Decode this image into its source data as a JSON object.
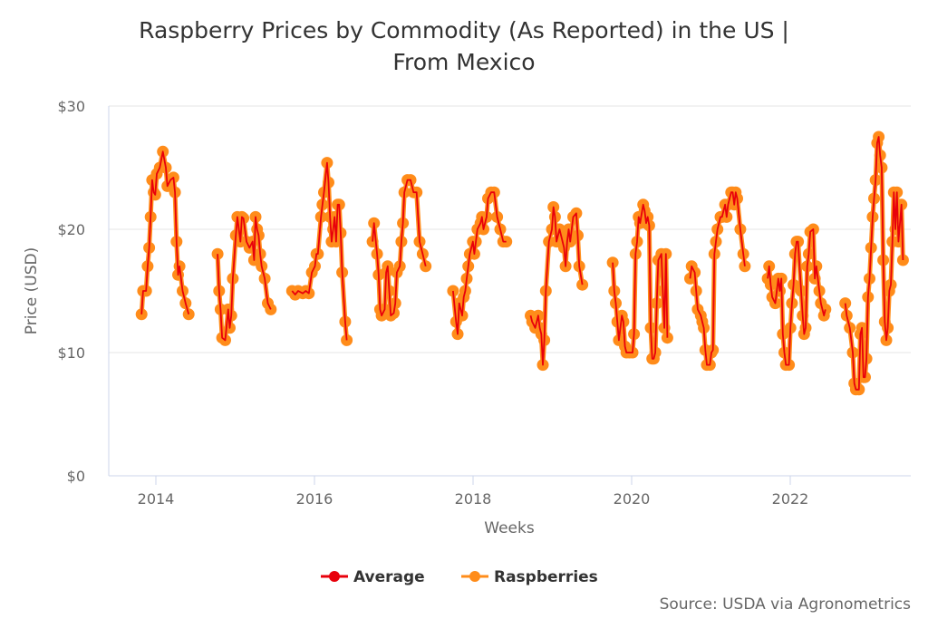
{
  "chart_data": {
    "type": "line",
    "title": "Raspberry Prices by Commodity (As Reported) in the US |",
    "subtitle": "From Mexico",
    "xlabel": "Weeks",
    "ylabel": "Price (USD)",
    "ylim": [
      0,
      30
    ],
    "xlim": [
      "2013-06-01",
      "2023-08-01"
    ],
    "yticks": [
      "$0",
      "$10",
      "$20",
      "$30"
    ],
    "ytick_values": [
      0,
      10,
      20,
      30
    ],
    "xticks": [
      "2014",
      "2016",
      "2018",
      "2020",
      "2022"
    ],
    "grid": "horizontal",
    "legend_position": "bottom",
    "source": "Source: USDA via Agronometrics",
    "series": [
      {
        "name": "Average",
        "color": "#e8000b"
      },
      {
        "name": "Raspberries",
        "color": "#ff8c1a"
      }
    ],
    "segments": [
      [
        [
          "2013-10-27",
          13.1
        ],
        [
          "2013-11-03",
          15
        ],
        [
          "2013-11-17",
          15
        ],
        [
          "2013-11-24",
          17
        ],
        [
          "2013-12-01",
          18.5
        ],
        [
          "2013-12-08",
          21
        ],
        [
          "2013-12-15",
          24
        ],
        [
          "2013-12-22",
          23
        ],
        [
          "2013-12-29",
          22.8
        ],
        [
          "2014-01-05",
          24.5
        ],
        [
          "2014-01-19",
          25
        ],
        [
          "2014-02-02",
          26.3
        ],
        [
          "2014-02-16",
          25
        ],
        [
          "2014-02-23",
          23.5
        ],
        [
          "2014-03-09",
          24
        ],
        [
          "2014-03-23",
          24.2
        ],
        [
          "2014-03-30",
          23
        ],
        [
          "2014-04-06",
          19
        ],
        [
          "2014-04-13",
          16.3
        ],
        [
          "2014-04-20",
          17
        ],
        [
          "2014-05-04",
          15
        ],
        [
          "2014-05-18",
          14
        ],
        [
          "2014-06-01",
          13.1
        ]
      ],
      [
        [
          "2014-10-12",
          18
        ],
        [
          "2014-10-19",
          15
        ],
        [
          "2014-10-26",
          13.5
        ],
        [
          "2014-11-02",
          11.2
        ],
        [
          "2014-11-16",
          11
        ],
        [
          "2014-11-30",
          13.5
        ],
        [
          "2014-12-07",
          12
        ],
        [
          "2014-12-14",
          13
        ],
        [
          "2014-12-21",
          16
        ],
        [
          "2015-01-04",
          19.5
        ],
        [
          "2015-01-11",
          21
        ],
        [
          "2015-01-25",
          19
        ],
        [
          "2015-02-01",
          21
        ],
        [
          "2015-02-08",
          20.9
        ],
        [
          "2015-02-22",
          19
        ],
        [
          "2015-03-08",
          18.5
        ],
        [
          "2015-03-22",
          19
        ],
        [
          "2015-03-29",
          17.5
        ],
        [
          "2015-04-05",
          21
        ],
        [
          "2015-04-12",
          20
        ],
        [
          "2015-04-19",
          19.5
        ],
        [
          "2015-04-26",
          18
        ],
        [
          "2015-05-03",
          17
        ],
        [
          "2015-05-17",
          16
        ],
        [
          "2015-05-31",
          14
        ],
        [
          "2015-06-14",
          13.5
        ]
      ],
      [
        [
          "2015-09-20",
          15
        ],
        [
          "2015-10-04",
          14.7
        ],
        [
          "2015-10-18",
          15
        ],
        [
          "2015-11-08",
          14.8
        ],
        [
          "2015-11-22",
          15
        ],
        [
          "2015-12-06",
          14.8
        ],
        [
          "2015-12-20",
          16.5
        ],
        [
          "2016-01-03",
          17
        ],
        [
          "2016-01-10",
          18
        ],
        [
          "2016-01-17",
          18
        ],
        [
          "2016-01-31",
          21
        ],
        [
          "2016-02-07",
          22
        ],
        [
          "2016-02-14",
          23
        ],
        [
          "2016-02-28",
          25.4
        ],
        [
          "2016-03-06",
          23.8
        ],
        [
          "2016-03-13",
          21
        ],
        [
          "2016-03-20",
          19
        ],
        [
          "2016-03-27",
          20
        ],
        [
          "2016-04-03",
          21
        ],
        [
          "2016-04-10",
          19
        ],
        [
          "2016-04-17",
          22
        ],
        [
          "2016-04-24",
          22
        ],
        [
          "2016-05-01",
          19.7
        ],
        [
          "2016-05-08",
          16.5
        ],
        [
          "2016-05-22",
          12.5
        ],
        [
          "2016-05-29",
          11
        ]
      ],
      [
        [
          "2016-09-25",
          19
        ],
        [
          "2016-10-02",
          20.5
        ],
        [
          "2016-10-16",
          18
        ],
        [
          "2016-10-23",
          16.3
        ],
        [
          "2016-10-30",
          13.5
        ],
        [
          "2016-11-06",
          13
        ],
        [
          "2016-11-20",
          13.5
        ],
        [
          "2016-11-27",
          16.5
        ],
        [
          "2016-12-04",
          17
        ],
        [
          "2016-12-11",
          15
        ],
        [
          "2016-12-18",
          13
        ],
        [
          "2017-01-01",
          13.2
        ],
        [
          "2017-01-08",
          14
        ],
        [
          "2017-01-15",
          16.5
        ],
        [
          "2017-01-29",
          17
        ],
        [
          "2017-02-05",
          19
        ],
        [
          "2017-02-12",
          20.5
        ],
        [
          "2017-02-19",
          23
        ],
        [
          "2017-03-05",
          24
        ],
        [
          "2017-03-19",
          24
        ],
        [
          "2017-04-02",
          23
        ],
        [
          "2017-04-16",
          23
        ],
        [
          "2017-04-30",
          19
        ],
        [
          "2017-05-14",
          18
        ],
        [
          "2017-05-28",
          17
        ]
      ],
      [
        [
          "2017-10-01",
          15
        ],
        [
          "2017-10-15",
          12.5
        ],
        [
          "2017-10-22",
          11.5
        ],
        [
          "2017-10-29",
          14
        ],
        [
          "2017-11-12",
          13
        ],
        [
          "2017-11-19",
          14.5
        ],
        [
          "2017-11-26",
          15
        ],
        [
          "2017-12-03",
          16
        ],
        [
          "2017-12-10",
          17
        ],
        [
          "2017-12-17",
          18
        ],
        [
          "2017-12-31",
          19
        ],
        [
          "2018-01-07",
          18
        ],
        [
          "2018-01-14",
          19
        ],
        [
          "2018-01-21",
          20
        ],
        [
          "2018-02-04",
          20.5
        ],
        [
          "2018-02-11",
          21
        ],
        [
          "2018-02-18",
          20
        ],
        [
          "2018-03-04",
          21
        ],
        [
          "2018-03-11",
          22.5
        ],
        [
          "2018-03-25",
          23
        ],
        [
          "2018-04-08",
          23
        ],
        [
          "2018-04-22",
          21
        ],
        [
          "2018-05-06",
          20
        ],
        [
          "2018-05-20",
          19
        ],
        [
          "2018-06-03",
          19
        ]
      ],
      [
        [
          "2018-09-23",
          13
        ],
        [
          "2018-09-30",
          12.5
        ],
        [
          "2018-10-14",
          12
        ],
        [
          "2018-10-28",
          13
        ],
        [
          "2018-11-04",
          12
        ],
        [
          "2018-11-11",
          11.5
        ],
        [
          "2018-11-18",
          9
        ],
        [
          "2018-11-25",
          11
        ],
        [
          "2018-12-02",
          15
        ],
        [
          "2018-12-16",
          19
        ],
        [
          "2018-12-30",
          20
        ],
        [
          "2019-01-06",
          21.8
        ],
        [
          "2019-01-13",
          21
        ],
        [
          "2019-01-20",
          19
        ],
        [
          "2019-02-03",
          20
        ],
        [
          "2019-02-10",
          19.5
        ],
        [
          "2019-02-24",
          18.5
        ],
        [
          "2019-03-03",
          17
        ],
        [
          "2019-03-10",
          19
        ],
        [
          "2019-03-17",
          20
        ],
        [
          "2019-03-24",
          19
        ],
        [
          "2019-04-07",
          21
        ],
        [
          "2019-04-21",
          21.3
        ],
        [
          "2019-04-28",
          19.5
        ],
        [
          "2019-05-05",
          17
        ],
        [
          "2019-05-19",
          15.5
        ]
      ],
      [
        [
          "2019-10-06",
          17.3
        ],
        [
          "2019-10-13",
          15
        ],
        [
          "2019-10-20",
          14
        ],
        [
          "2019-10-27",
          12.5
        ],
        [
          "2019-11-03",
          11
        ],
        [
          "2019-11-17",
          13
        ],
        [
          "2019-11-24",
          12.5
        ],
        [
          "2019-12-01",
          10.5
        ],
        [
          "2019-12-08",
          10
        ],
        [
          "2019-12-22",
          10
        ],
        [
          "2020-01-05",
          10
        ],
        [
          "2020-01-12",
          11.5
        ],
        [
          "2020-01-19",
          18
        ],
        [
          "2020-01-26",
          19
        ],
        [
          "2020-02-02",
          21
        ],
        [
          "2020-02-09",
          20.5
        ],
        [
          "2020-02-23",
          22
        ],
        [
          "2020-03-01",
          21.5
        ],
        [
          "2020-03-08",
          20.5
        ],
        [
          "2020-03-15",
          21
        ],
        [
          "2020-03-22",
          20.3
        ],
        [
          "2020-03-29",
          12
        ],
        [
          "2020-04-05",
          9.5
        ],
        [
          "2020-04-12",
          9.5
        ],
        [
          "2020-04-19",
          10
        ],
        [
          "2020-04-26",
          14
        ],
        [
          "2020-05-03",
          17.5
        ],
        [
          "2020-05-17",
          18
        ],
        [
          "2020-05-24",
          15
        ],
        [
          "2020-05-31",
          12
        ],
        [
          "2020-06-07",
          18
        ],
        [
          "2020-06-14",
          11.2
        ]
      ],
      [
        [
          "2020-09-27",
          16
        ],
        [
          "2020-10-04",
          17
        ],
        [
          "2020-10-18",
          16.5
        ],
        [
          "2020-10-25",
          15
        ],
        [
          "2020-11-01",
          13.5
        ],
        [
          "2020-11-15",
          13
        ],
        [
          "2020-11-22",
          12.5
        ],
        [
          "2020-11-29",
          12
        ],
        [
          "2020-12-06",
          10.2
        ],
        [
          "2020-12-13",
          9
        ],
        [
          "2020-12-27",
          9
        ],
        [
          "2021-01-03",
          10
        ],
        [
          "2021-01-10",
          10.2
        ],
        [
          "2021-01-17",
          18
        ],
        [
          "2021-01-24",
          19
        ],
        [
          "2021-01-31",
          20
        ],
        [
          "2021-02-14",
          21
        ],
        [
          "2021-02-21",
          21
        ],
        [
          "2021-03-07",
          22
        ],
        [
          "2021-03-14",
          21
        ],
        [
          "2021-03-21",
          22
        ],
        [
          "2021-04-04",
          23
        ],
        [
          "2021-04-11",
          23
        ],
        [
          "2021-04-18",
          22
        ],
        [
          "2021-04-25",
          23
        ],
        [
          "2021-05-02",
          22.5
        ],
        [
          "2021-05-16",
          20
        ],
        [
          "2021-05-30",
          18
        ],
        [
          "2021-06-06",
          17
        ]
      ],
      [
        [
          "2021-09-19",
          16
        ],
        [
          "2021-09-26",
          17
        ],
        [
          "2021-10-03",
          15.5
        ],
        [
          "2021-10-10",
          14.5
        ],
        [
          "2021-10-24",
          14
        ],
        [
          "2021-11-07",
          16
        ],
        [
          "2021-11-14",
          15
        ],
        [
          "2021-11-21",
          16
        ],
        [
          "2021-11-28",
          11.5
        ],
        [
          "2021-12-05",
          10
        ],
        [
          "2021-12-12",
          9
        ],
        [
          "2021-12-26",
          9
        ],
        [
          "2022-01-02",
          12
        ],
        [
          "2022-01-09",
          14
        ],
        [
          "2022-01-16",
          15.5
        ],
        [
          "2022-01-23",
          18
        ],
        [
          "2022-01-30",
          19
        ],
        [
          "2022-02-06",
          19
        ],
        [
          "2022-02-20",
          15
        ],
        [
          "2022-02-27",
          13
        ],
        [
          "2022-03-06",
          11.5
        ],
        [
          "2022-03-13",
          12
        ],
        [
          "2022-03-20",
          17
        ],
        [
          "2022-03-27",
          18
        ],
        [
          "2022-04-03",
          19.8
        ],
        [
          "2022-04-17",
          20
        ],
        [
          "2022-04-24",
          16
        ],
        [
          "2022-05-01",
          17
        ],
        [
          "2022-05-15",
          15
        ],
        [
          "2022-05-22",
          14
        ],
        [
          "2022-06-05",
          13
        ],
        [
          "2022-06-12",
          13.5
        ]
      ],
      [
        [
          "2022-09-11",
          14
        ],
        [
          "2022-09-18",
          13
        ],
        [
          "2022-10-02",
          12
        ],
        [
          "2022-10-16",
          10
        ],
        [
          "2022-10-23",
          7.5
        ],
        [
          "2022-10-30",
          7
        ],
        [
          "2022-11-13",
          7
        ],
        [
          "2022-11-20",
          11.5
        ],
        [
          "2022-11-27",
          12
        ],
        [
          "2022-12-04",
          8
        ],
        [
          "2022-12-11",
          8
        ],
        [
          "2022-12-18",
          9.5
        ],
        [
          "2022-12-25",
          14.5
        ],
        [
          "2023-01-01",
          16
        ],
        [
          "2023-01-08",
          18.5
        ],
        [
          "2023-01-15",
          21
        ],
        [
          "2023-01-22",
          22.5
        ],
        [
          "2023-01-29",
          24
        ],
        [
          "2023-02-05",
          27
        ],
        [
          "2023-02-12",
          27.5
        ],
        [
          "2023-02-19",
          26
        ],
        [
          "2023-02-26",
          25
        ],
        [
          "2023-03-05",
          17.5
        ],
        [
          "2023-03-12",
          12.5
        ],
        [
          "2023-03-19",
          11
        ],
        [
          "2023-03-26",
          12
        ],
        [
          "2023-04-02",
          15
        ],
        [
          "2023-04-09",
          15.5
        ],
        [
          "2023-04-16",
          19
        ],
        [
          "2023-04-23",
          23
        ],
        [
          "2023-04-30",
          20
        ],
        [
          "2023-05-07",
          23
        ],
        [
          "2023-05-14",
          19
        ],
        [
          "2023-05-28",
          22
        ],
        [
          "2023-06-04",
          17.5
        ]
      ]
    ]
  }
}
